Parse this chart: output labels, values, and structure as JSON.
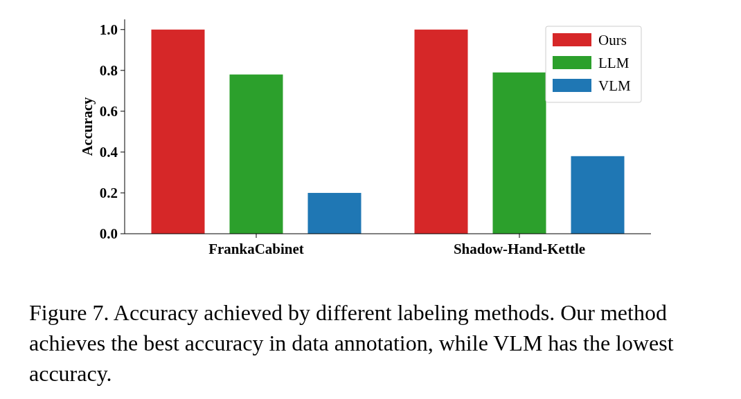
{
  "chart_data": {
    "type": "bar",
    "ylabel": "Accuracy",
    "categories": [
      "FrankaCabinet",
      "Shadow-Hand-Kettle"
    ],
    "series": [
      {
        "name": "Ours",
        "color": "#d62728",
        "values": [
          1.0,
          1.0
        ]
      },
      {
        "name": "LLM",
        "color": "#2ca02c",
        "values": [
          0.78,
          0.79
        ]
      },
      {
        "name": "VLM",
        "color": "#1f77b4",
        "values": [
          0.2,
          0.38
        ]
      }
    ],
    "ylim": [
      0,
      1.05
    ],
    "yticks": [
      {
        "value": 0,
        "label": "0.0"
      },
      0.2,
      0.4,
      0.6,
      0.8,
      {
        "value": 1,
        "label": "1.0"
      }
    ],
    "legend": "top right",
    "grid": false,
    "annotations": [
      "Figure 7. Accuracy achieved by different labeling methods. Our method achieves the best accuracy in data annotation, while VLM has the lowest accuracy."
    ]
  }
}
